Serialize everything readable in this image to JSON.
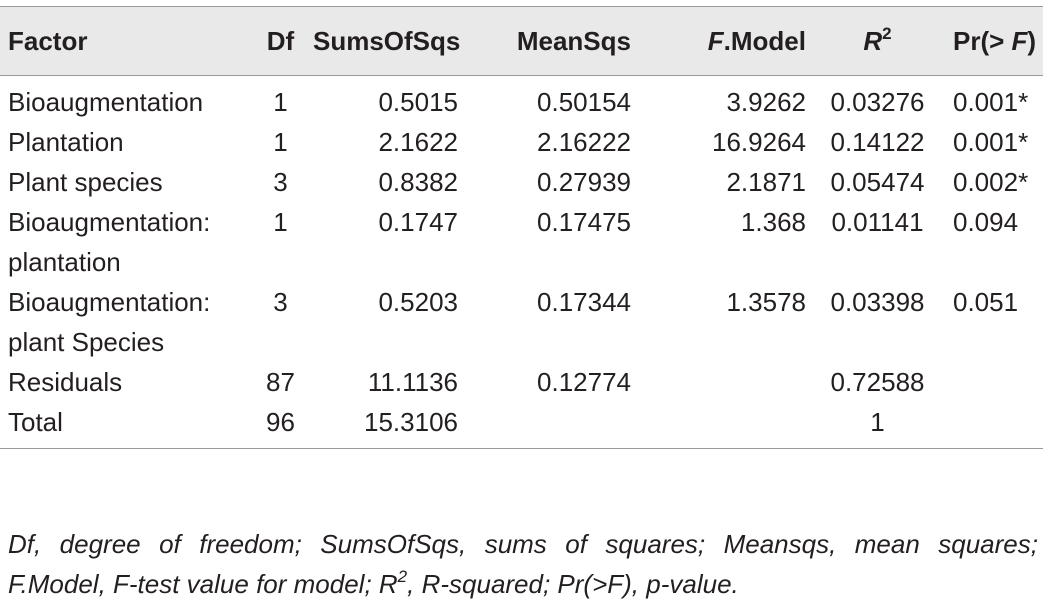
{
  "table": {
    "headers": {
      "factor": "Factor",
      "df": "Df",
      "ss": "SumsOfSqs",
      "ms": "MeanSqs",
      "f_italic": "F",
      "f_rest": ".Model",
      "r2_base": "R",
      "r2_sup": "2",
      "p_prefix": "Pr(> ",
      "p_italic": "F",
      "p_suffix": ")"
    },
    "rows": [
      {
        "factor": [
          "Bioaugmentation"
        ],
        "df": "1",
        "ss": "0.5015",
        "ms": "0.50154",
        "f": "3.9262",
        "r2": "0.03276",
        "p": "0.001*"
      },
      {
        "factor": [
          "Plantation"
        ],
        "df": "1",
        "ss": "2.1622",
        "ms": "2.16222",
        "f": "16.9264",
        "r2": "0.14122",
        "p": "0.001*"
      },
      {
        "factor": [
          "Plant species"
        ],
        "df": "3",
        "ss": "0.8382",
        "ms": "0.27939",
        "f": "2.1871",
        "r2": "0.05474",
        "p": "0.002*"
      },
      {
        "factor": [
          "Bioaugmentation:",
          "plantation"
        ],
        "df": "1",
        "ss": "0.1747",
        "ms": "0.17475",
        "f": "1.368",
        "r2": "0.01141",
        "p": "0.094"
      },
      {
        "factor": [
          "Bioaugmentation:",
          "plant Species"
        ],
        "df": "3",
        "ss": "0.5203",
        "ms": "0.17344",
        "f": "1.3578",
        "r2": "0.03398",
        "p": "0.051"
      },
      {
        "factor": [
          "Residuals"
        ],
        "df": "87",
        "ss": "11.1136",
        "ms": "0.12774",
        "f": "",
        "r2": "0.72588",
        "p": ""
      },
      {
        "factor": [
          "Total"
        ],
        "df": "96",
        "ss": "15.3106",
        "ms": "",
        "f": "",
        "r2": "1",
        "p": ""
      }
    ]
  },
  "footnote": {
    "line1": "Df, degree of freedom; SumsOfSqs, sums of squares; Meansqs, mean squares;",
    "line2_a": "F.Model, F-test value for model; R",
    "line2_sup": "2",
    "line2_b": ", R-squared; Pr(>F), p-value."
  }
}
